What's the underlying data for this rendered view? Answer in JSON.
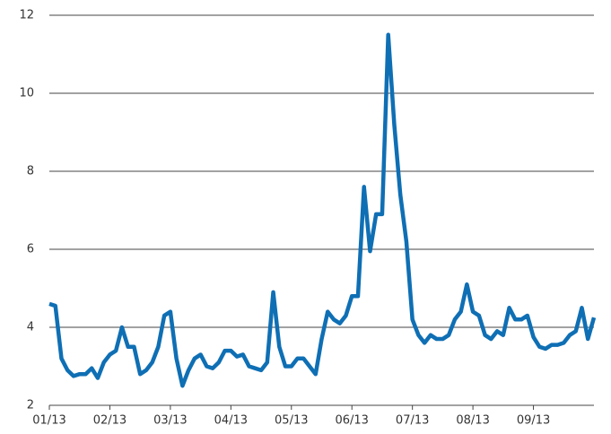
{
  "chart_data": {
    "type": "line",
    "categories": [
      "01/13",
      null,
      null,
      null,
      null,
      null,
      null,
      null,
      null,
      null,
      "02/13",
      null,
      null,
      null,
      null,
      null,
      null,
      null,
      null,
      null,
      "03/13",
      null,
      null,
      null,
      null,
      null,
      null,
      null,
      null,
      null,
      "04/13",
      null,
      null,
      null,
      null,
      null,
      null,
      null,
      null,
      null,
      "05/13",
      null,
      null,
      null,
      null,
      null,
      null,
      null,
      null,
      null,
      "06/13",
      null,
      null,
      null,
      null,
      null,
      null,
      null,
      null,
      null,
      "07/13",
      null,
      null,
      null,
      null,
      null,
      null,
      null,
      null,
      null,
      "08/13",
      null,
      null,
      null,
      null,
      null,
      null,
      null,
      null,
      null,
      "09/13",
      null,
      null,
      null,
      null,
      null,
      null,
      null,
      null,
      null,
      null
    ],
    "series": [
      {
        "color": "#0f6fb4",
        "values": [
          4.6,
          4.55,
          3.2,
          2.9,
          2.75,
          2.8,
          2.8,
          2.95,
          2.7,
          3.1,
          3.3,
          3.4,
          4.0,
          3.5,
          3.5,
          2.8,
          2.9,
          3.1,
          3.5,
          4.3,
          4.4,
          3.2,
          2.5,
          2.9,
          3.2,
          3.3,
          3.0,
          2.95,
          3.1,
          3.4,
          3.4,
          3.25,
          3.3,
          3.0,
          2.95,
          2.9,
          3.1,
          4.9,
          3.5,
          3.0,
          3.0,
          3.2,
          3.2,
          3.0,
          2.8,
          3.7,
          4.4,
          4.2,
          4.1,
          4.3,
          4.8,
          4.8,
          7.6,
          5.95,
          6.9,
          6.9,
          11.5,
          9.2,
          7.4,
          6.2,
          4.2,
          3.8,
          3.6,
          3.8,
          3.7,
          3.7,
          3.8,
          4.2,
          4.4,
          5.1,
          4.4,
          4.3,
          3.8,
          3.7,
          3.9,
          3.8,
          4.5,
          4.2,
          4.2,
          4.3,
          3.75,
          3.5,
          3.45,
          3.55,
          3.55,
          3.6,
          3.8,
          3.9,
          4.5,
          3.7,
          4.25
        ]
      }
    ],
    "ylim": [
      2,
      12
    ],
    "yticks": [
      2,
      4,
      6,
      8,
      10,
      12
    ],
    "grid": true
  }
}
